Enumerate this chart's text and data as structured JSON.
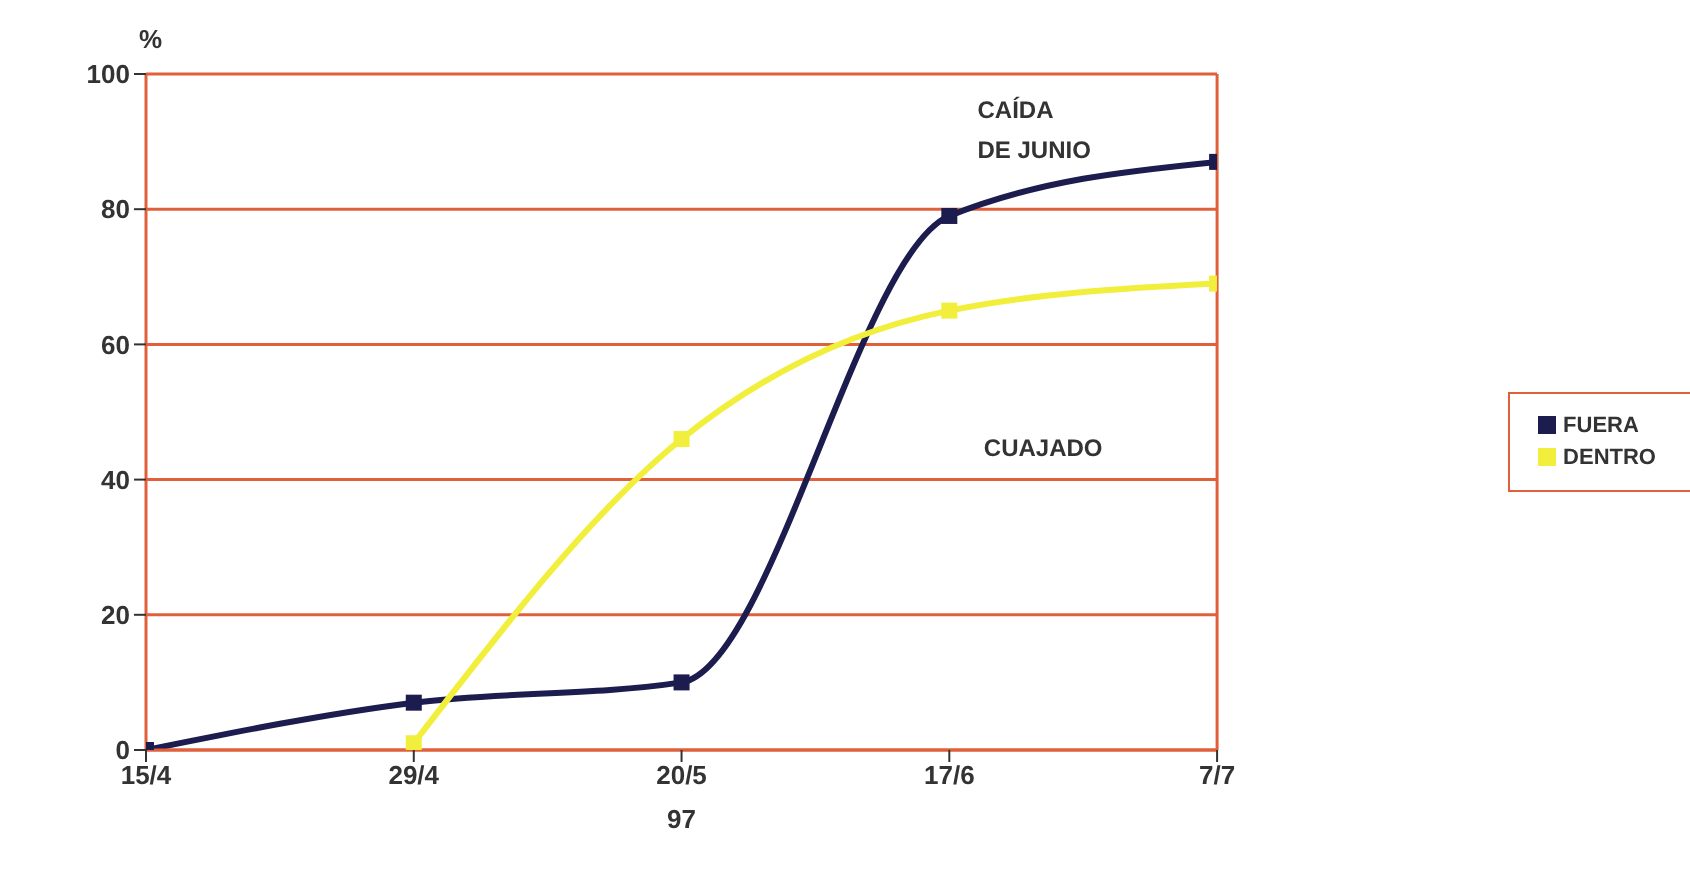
{
  "chart_data": {
    "type": "line",
    "ylabel": "%",
    "xlabel": "97",
    "categories": [
      "15/4",
      "29/4",
      "20/5",
      "17/6",
      "7/7"
    ],
    "series": [
      {
        "name": "FUERA",
        "color": "#1c1c4e",
        "values": [
          0,
          7,
          10,
          79,
          87
        ]
      },
      {
        "name": "DENTRO",
        "color": "#f2ee3c",
        "values": [
          null,
          1,
          46,
          65,
          69
        ]
      }
    ],
    "ylim": [
      0,
      100
    ],
    "yticks": [
      0,
      20,
      40,
      60,
      80,
      100
    ],
    "grid": "y",
    "legend": "right",
    "marker": "square",
    "line_style": "solid",
    "annotations": [
      "CAÍDA\nDE JUNIO",
      "CUAJADO"
    ]
  }
}
